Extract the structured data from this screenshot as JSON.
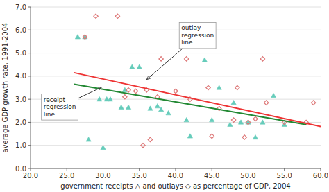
{
  "chart_data": {
    "type": "scatter",
    "xlabel": "government receipts △ and outlays ◇ as percentage of GDP, 2004",
    "ylabel": "average GDP growth rate, 1991-2004",
    "xlim": [
      20.0,
      60.0
    ],
    "ylim": [
      0.0,
      7.0
    ],
    "xticks": [
      {
        "value": 20.0,
        "label": "20.0"
      },
      {
        "value": 25.0,
        "label": "25.0"
      },
      {
        "value": 30.0,
        "label": "30.0"
      },
      {
        "value": 35.0,
        "label": "35.0"
      },
      {
        "value": 40.0,
        "label": "40.0"
      },
      {
        "value": 45.0,
        "label": "45.0"
      },
      {
        "value": 50.0,
        "label": "50.0"
      },
      {
        "value": 55.0,
        "label": "55.0"
      },
      {
        "value": 60.0,
        "label": "60.0"
      }
    ],
    "yticks": [
      {
        "value": 0.0,
        "label": "0.0"
      },
      {
        "value": 1.0,
        "label": "1.0"
      },
      {
        "value": 2.0,
        "label": "2.0"
      },
      {
        "value": 3.0,
        "label": "3.0"
      },
      {
        "value": 4.0,
        "label": "4.0"
      },
      {
        "value": 5.0,
        "label": "5.0"
      },
      {
        "value": 6.0,
        "label": "6.0"
      },
      {
        "value": 7.0,
        "label": "7.0"
      }
    ],
    "grid": "y",
    "series": [
      {
        "type": "scatter",
        "marker": "triangle",
        "color": "#66ccbb",
        "x": [
          26.5,
          27.5,
          28.0,
          29.5,
          30.0,
          30.5,
          31.0,
          32.5,
          33.0,
          33.5,
          34.0,
          35.0,
          36.5,
          37.5,
          38.0,
          39.0,
          41.5,
          42.0,
          44.0,
          45.0,
          46.0,
          47.5,
          48.0,
          49.0,
          50.0,
          51.0,
          52.0,
          53.5,
          55.0
        ],
        "values": [
          5.7,
          5.7,
          1.25,
          3.0,
          0.9,
          3.0,
          3.0,
          2.65,
          3.4,
          2.65,
          4.4,
          4.4,
          2.6,
          2.7,
          2.55,
          2.4,
          2.1,
          1.4,
          4.7,
          2.1,
          3.5,
          1.9,
          2.85,
          2.0,
          2.0,
          1.35,
          2.0,
          3.15,
          1.9
        ]
      },
      {
        "type": "scatter",
        "marker": "open-diamond",
        "color": "#dd7777",
        "x": [
          27.5,
          29.0,
          32.0,
          33.0,
          33.5,
          34.5,
          35.5,
          36.0,
          36.5,
          37.5,
          38.0,
          40.0,
          41.5,
          42.0,
          44.5,
          45.0,
          46.0,
          48.0,
          48.5,
          49.5,
          50.0,
          51.0,
          52.0,
          52.5,
          55.0,
          58.0,
          59.0
        ],
        "values": [
          5.7,
          6.6,
          6.6,
          3.1,
          3.4,
          3.35,
          1.0,
          3.4,
          1.25,
          3.1,
          4.75,
          3.35,
          4.75,
          3.0,
          3.5,
          1.4,
          2.6,
          2.1,
          3.5,
          1.35,
          2.0,
          2.15,
          4.75,
          2.85,
          2.0,
          2.0,
          2.85
        ]
      },
      {
        "type": "line",
        "color": "#228833",
        "x": [
          26.0,
          58.0
        ],
        "values": [
          3.65,
          1.9
        ]
      },
      {
        "type": "line",
        "color": "#ee3333",
        "x": [
          26.0,
          60.0
        ],
        "values": [
          4.15,
          1.82
        ]
      }
    ],
    "annotations": [
      {
        "text": "outlay\nregression\nline",
        "x": 36.0,
        "y": 3.85,
        "text_x": 40.5,
        "text_y": 5.2
      },
      {
        "text": "receipt\nregression\nline",
        "x": 29.8,
        "y": 3.52,
        "text_x": 21.5,
        "text_y": 2.1
      }
    ]
  }
}
